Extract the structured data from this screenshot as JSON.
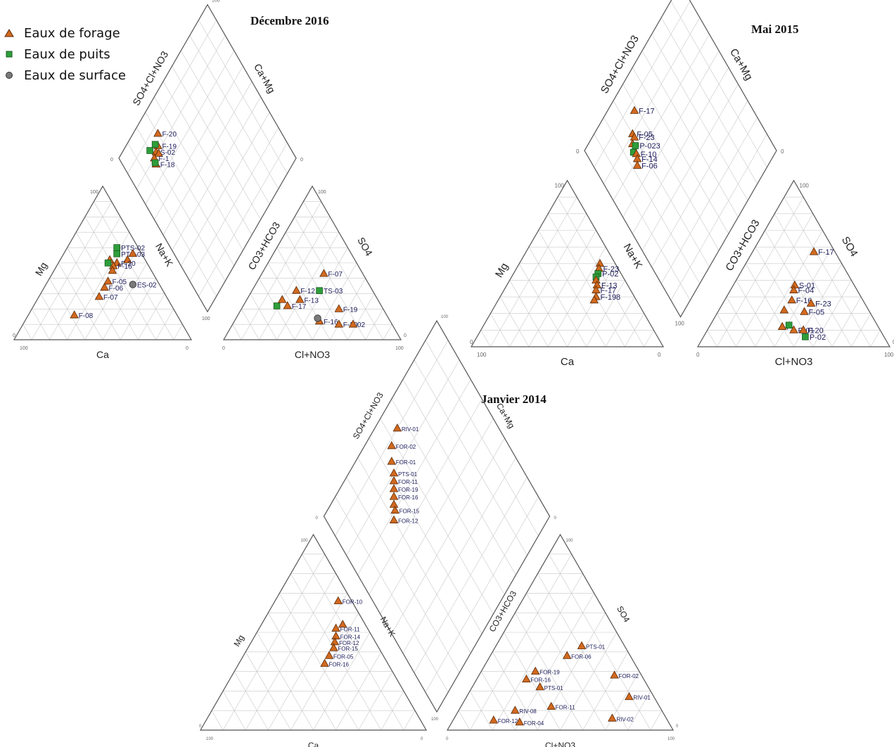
{
  "legend": {
    "items": [
      {
        "label": "Eaux de forage",
        "symbol": "triangle",
        "color": "#d2691e"
      },
      {
        "label": "Eaux de puits",
        "symbol": "square",
        "color": "#2e9e3a"
      },
      {
        "label": "Eaux de surface",
        "symbol": "circle",
        "color": "#7a7a7a"
      }
    ]
  },
  "colors": {
    "forage": "#d2691e",
    "puits": "#2e9e3a",
    "puits_light": "#6cc06c",
    "surface": "#7a7a7a",
    "grid": "#c8c8c8",
    "frame": "#555555",
    "label": "#1a1a5a"
  },
  "chart_data": [
    {
      "type": "scatter",
      "subtype": "piper",
      "title": "Décembre 2016",
      "cation_labels": {
        "left": "Mg",
        "bottom": "Ca",
        "right": "Na+K"
      },
      "anion_labels": {
        "left": "CO3+HCO3",
        "bottom": "Cl+NO3",
        "right": "SO4"
      },
      "diamond_labels": {
        "left": "SO4+Cl+NO3",
        "right": "Ca+Mg"
      },
      "tick_labels": [
        "100",
        "0"
      ],
      "cations": [
        {
          "label": "PTS-02",
          "group": "puits",
          "Ca": 12,
          "Mg": 60
        },
        {
          "label": "PTS-03",
          "group": "puits",
          "Ca": 14,
          "Mg": 56
        },
        {
          "label": "",
          "group": "forage",
          "Ca": 5,
          "Mg": 56
        },
        {
          "label": "",
          "group": "forage",
          "Ca": 10,
          "Mg": 52
        },
        {
          "label": "F-20",
          "group": "forage",
          "Ca": 17,
          "Mg": 50
        },
        {
          "label": "",
          "group": "forage",
          "Ca": 20,
          "Mg": 52
        },
        {
          "label": "F-16",
          "group": "forage",
          "Ca": 20,
          "Mg": 48
        },
        {
          "label": "",
          "group": "puits",
          "Ca": 22,
          "Mg": 50
        },
        {
          "label": "",
          "group": "forage",
          "Ca": 22,
          "Mg": 45
        },
        {
          "label": "F-05",
          "group": "forage",
          "Ca": 28,
          "Mg": 38
        },
        {
          "label": "F-06",
          "group": "forage",
          "Ca": 32,
          "Mg": 34
        },
        {
          "label": "ES-02",
          "group": "surface",
          "Ca": 15,
          "Mg": 36
        },
        {
          "label": "F-07",
          "group": "forage",
          "Ca": 38,
          "Mg": 28
        },
        {
          "label": "F-08",
          "group": "forage",
          "Ca": 58,
          "Mg": 16
        }
      ],
      "anions": [
        {
          "label": "F-07",
          "group": "forage",
          "Cl+NO3": 35,
          "SO4": 43
        },
        {
          "label": "TS-03",
          "group": "puits",
          "Cl+NO3": 38,
          "SO4": 32
        },
        {
          "label": "F-12",
          "group": "forage",
          "Cl+NO3": 25,
          "SO4": 32
        },
        {
          "label": "F-13",
          "group": "forage",
          "Cl+NO3": 30,
          "SO4": 26
        },
        {
          "label": "F-17",
          "group": "forage",
          "Cl+NO3": 25,
          "SO4": 22
        },
        {
          "label": "",
          "group": "puits",
          "Cl+NO3": 19,
          "SO4": 22
        },
        {
          "label": "",
          "group": "forage",
          "Cl+NO3": 20,
          "SO4": 26
        },
        {
          "label": "F-19",
          "group": "forage",
          "Cl+NO3": 55,
          "SO4": 20
        },
        {
          "label": "F-16",
          "group": "forage",
          "Cl+NO3": 48,
          "SO4": 12
        },
        {
          "label": "",
          "group": "surface",
          "Cl+NO3": 46,
          "SO4": 14
        },
        {
          "label": "F-20",
          "group": "forage",
          "Cl+NO3": 60,
          "SO4": 10
        },
        {
          "label": "02",
          "group": "forage",
          "Cl+NO3": 68,
          "SO4": 10
        }
      ],
      "diamond": [
        {
          "label": "F-20",
          "group": "forage",
          "S": 86,
          "M": 30
        },
        {
          "label": "F-19",
          "group": "forage",
          "S": 82,
          "M": 26
        },
        {
          "label": "",
          "group": "puits",
          "S": 85,
          "M": 20
        },
        {
          "label": "",
          "group": "puits",
          "S": 84,
          "M": 25
        },
        {
          "label": "S-02",
          "group": "forage",
          "S": 81,
          "M": 23
        },
        {
          "label": "",
          "group": "forage",
          "S": 79,
          "M": 24
        },
        {
          "label": "F-1",
          "group": "forage",
          "S": 80,
          "M": 20
        },
        {
          "label": "F-18",
          "group": "forage",
          "S": 77,
          "M": 19
        },
        {
          "label": "",
          "group": "puits",
          "S": 78,
          "M": 19
        }
      ]
    },
    {
      "type": "scatter",
      "subtype": "piper",
      "title": "Mai 2015",
      "cation_labels": {
        "left": "Mg",
        "bottom": "Ca",
        "right": "Na+K"
      },
      "anion_labels": {
        "left": "CO3+HCO3",
        "bottom": "Cl+NO3",
        "right": "SO4"
      },
      "diamond_labels": {
        "left": "SO4+Cl+NO3",
        "right": "Ca+Mg"
      },
      "tick_labels": [
        "100",
        "0"
      ],
      "cations": [
        {
          "label": "",
          "group": "forage",
          "Ca": 8,
          "Mg": 50
        },
        {
          "label": "F-23",
          "group": "forage",
          "Ca": 10,
          "Mg": 47
        },
        {
          "label": "P-02",
          "group": "puits",
          "Ca": 12,
          "Mg": 44
        },
        {
          "label": "",
          "group": "puits",
          "Ca": 14,
          "Mg": 42
        },
        {
          "label": "",
          "group": "forage",
          "Ca": 15,
          "Mg": 40
        },
        {
          "label": "F-13",
          "group": "forage",
          "Ca": 16,
          "Mg": 37
        },
        {
          "label": "F-17",
          "group": "forage",
          "Ca": 18,
          "Mg": 34
        },
        {
          "label": "F-198",
          "group": "forage",
          "Ca": 20,
          "Mg": 30
        },
        {
          "label": "",
          "group": "forage",
          "Ca": 22,
          "Mg": 28
        }
      ],
      "anions": [
        {
          "label": "F-17",
          "group": "forage",
          "Cl+NO3": 32,
          "SO4": 57
        },
        {
          "label": "S-01",
          "group": "forage",
          "Cl+NO3": 32,
          "SO4": 37
        },
        {
          "label": "F-04",
          "group": "forage",
          "Cl+NO3": 33,
          "SO4": 34
        },
        {
          "label": "F-16",
          "group": "forage",
          "Cl+NO3": 35,
          "SO4": 28
        },
        {
          "label": "F-23",
          "group": "forage",
          "Cl+NO3": 46,
          "SO4": 26
        },
        {
          "label": "F-05",
          "group": "forage",
          "Cl+NO3": 45,
          "SO4": 21
        },
        {
          "label": "",
          "group": "forage",
          "Cl+NO3": 34,
          "SO4": 22
        },
        {
          "label": "F-",
          "group": "forage",
          "Cl+NO3": 38,
          "SO4": 12
        },
        {
          "label": "",
          "group": "puits",
          "Cl+NO3": 41,
          "SO4": 13
        },
        {
          "label": "P-01",
          "group": "forage",
          "Cl+NO3": 45,
          "SO4": 10
        },
        {
          "label": "F-20",
          "group": "forage",
          "Cl+NO3": 50,
          "SO4": 10
        },
        {
          "label": "P-02",
          "group": "puits",
          "Cl+NO3": 53,
          "SO4": 6
        }
      ],
      "diamond": [
        {
          "label": "F-17",
          "group": "forage",
          "S": 86,
          "M": 38
        },
        {
          "label": "F-05",
          "group": "forage",
          "S": 80,
          "M": 30
        },
        {
          "label": "F-23",
          "group": "forage",
          "S": 78,
          "M": 30
        },
        {
          "label": "",
          "group": "forage",
          "S": 77,
          "M": 27
        },
        {
          "label": "P-023",
          "group": "puits",
          "S": 75,
          "M": 28
        },
        {
          "label": "",
          "group": "puits",
          "S": 74,
          "M": 25
        },
        {
          "label": "F-10",
          "group": "forage",
          "S": 72,
          "M": 26
        },
        {
          "label": "F-14",
          "group": "forage",
          "S": 70,
          "M": 25
        },
        {
          "label": "F-06",
          "group": "forage",
          "S": 68,
          "M": 23
        }
      ]
    },
    {
      "type": "scatter",
      "subtype": "piper",
      "title": "Janvier 2014",
      "cation_labels": {
        "left": "Mg",
        "bottom": "Ca",
        "right": "Na+K"
      },
      "anion_labels": {
        "left": "CO3+HCO3",
        "bottom": "Cl+NO3",
        "right": "SO4"
      },
      "diamond_labels": {
        "left": "SO4+Cl+NO3",
        "right": "Ca+Mg"
      },
      "tick_labels": [
        "100",
        "0"
      ],
      "cations": [
        {
          "label": "FOR-10",
          "group": "forage",
          "Ca": 6,
          "Mg": 66
        },
        {
          "label": "",
          "group": "forage",
          "Ca": 10,
          "Mg": 54
        },
        {
          "label": "FOR-11",
          "group": "forage",
          "Ca": 14,
          "Mg": 52
        },
        {
          "label": "FOR-14",
          "group": "forage",
          "Ca": 16,
          "Mg": 48
        },
        {
          "label": "FOR-12",
          "group": "forage",
          "Ca": 18,
          "Mg": 45
        },
        {
          "label": "FOR-15",
          "group": "forage",
          "Ca": 20,
          "Mg": 42
        },
        {
          "label": "FOR-05",
          "group": "forage",
          "Ca": 24,
          "Mg": 38
        },
        {
          "label": "FOR-16",
          "group": "forage",
          "Ca": 28,
          "Mg": 34
        }
      ],
      "anions": [
        {
          "label": "PTS-01",
          "group": "forage",
          "Cl+NO3": 38,
          "SO4": 43
        },
        {
          "label": "FOR-06",
          "group": "forage",
          "Cl+NO3": 34,
          "SO4": 38
        },
        {
          "label": "FOR-02",
          "group": "forage",
          "Cl+NO3": 60,
          "SO4": 28
        },
        {
          "label": "RIV-01",
          "group": "forage",
          "Cl+NO3": 72,
          "SO4": 17
        },
        {
          "label": "FOR-19",
          "group": "forage",
          "Cl+NO3": 24,
          "SO4": 30
        },
        {
          "label": "FOR-16",
          "group": "forage",
          "Cl+NO3": 22,
          "SO4": 26
        },
        {
          "label": "PTS-01",
          "group": "forage",
          "Cl+NO3": 30,
          "SO4": 22
        },
        {
          "label": "FOR-11",
          "group": "forage",
          "Cl+NO3": 40,
          "SO4": 12
        },
        {
          "label": "RIV-02",
          "group": "forage",
          "Cl+NO3": 70,
          "SO4": 6
        },
        {
          "label": "RIV-08",
          "group": "forage",
          "Cl+NO3": 25,
          "SO4": 10
        },
        {
          "label": "FOR-12",
          "group": "forage",
          "Cl+NO3": 18,
          "SO4": 5
        },
        {
          "label": "FOR-04",
          "group": "forage",
          "Cl+NO3": 30,
          "SO4": 4
        }
      ],
      "diamond": [
        {
          "label": "RIV-01",
          "group": "forage",
          "S": 90,
          "M": 55
        },
        {
          "label": "FOR-02",
          "group": "forage",
          "S": 88,
          "M": 48
        },
        {
          "label": "FOR-01",
          "group": "forage",
          "S": 84,
          "M": 44
        },
        {
          "label": "PTS-01",
          "group": "forage",
          "S": 80,
          "M": 42
        },
        {
          "label": "FOR-11",
          "group": "forage",
          "S": 78,
          "M": 40
        },
        {
          "label": "FOR-19",
          "group": "forage",
          "S": 76,
          "M": 38
        },
        {
          "label": "FOR-16",
          "group": "forage",
          "S": 74,
          "M": 36
        },
        {
          "label": "",
          "group": "forage",
          "S": 72,
          "M": 34
        },
        {
          "label": "FOR-15",
          "group": "forage",
          "S": 70,
          "M": 33
        },
        {
          "label": "FOR-12",
          "group": "forage",
          "S": 68,
          "M": 30
        }
      ]
    }
  ]
}
